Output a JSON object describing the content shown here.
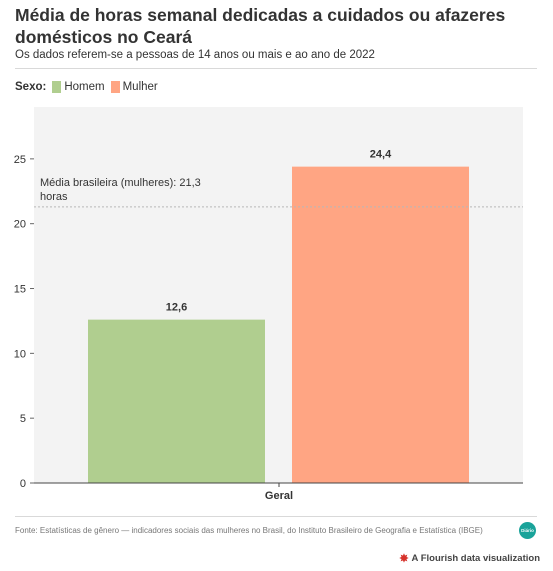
{
  "header": {
    "title": "Média de horas semanal dedicadas a cuidados ou afazeres domésticos no Ceará",
    "subtitle": "Os dados referem-se a pessoas de 14 anos ou mais e ao ano de 2022"
  },
  "legend": {
    "title": "Sexo:",
    "items": [
      {
        "label": "Homem",
        "color": "#b0ce8f"
      },
      {
        "label": "Mulher",
        "color": "#ffa583"
      }
    ]
  },
  "chart_data": {
    "type": "bar",
    "categories": [
      "Geral"
    ],
    "series": [
      {
        "name": "Homem",
        "values": [
          12.6
        ],
        "color": "#b0ce8f",
        "label": "12,6"
      },
      {
        "name": "Mulher",
        "values": [
          24.4
        ],
        "color": "#ffa583",
        "label": "24,4"
      }
    ],
    "yticks": [
      0,
      5,
      10,
      15,
      20,
      25
    ],
    "ylim": [
      0,
      29
    ],
    "reference_line": {
      "value": 21.3,
      "label_line1": "Média brasileira (mulheres): 21,3",
      "label_line2": "horas"
    },
    "grid": false,
    "plot_background": "#f3f3f3"
  },
  "footer": {
    "source": "Fonte: Estatísticas de gênero — indicadores sociais das mulheres no Brasil, do Instituto Brasileiro de Geografia e Estatística (IBGE)",
    "brand_text": "Diário",
    "flourish": "A Flourish data visualization"
  }
}
